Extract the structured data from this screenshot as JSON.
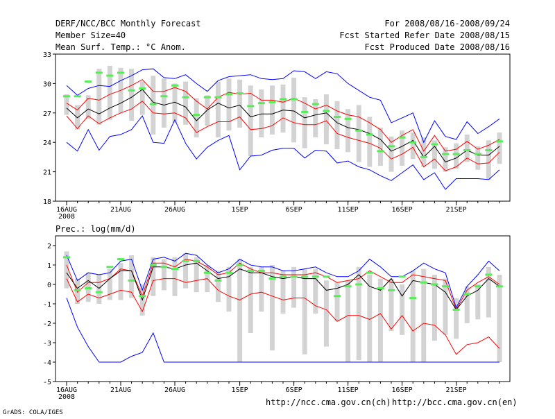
{
  "header": {
    "title": "DERF/NCC/BCC Monthly Forecast",
    "member_size": "Member Size=40",
    "variable": "Mean Surf. Temp.: °C Anom.",
    "period": "For 2008/08/16-2008/09/24",
    "start_ref": "Fcst Started Refer Date 2008/08/15",
    "produced": "Fcst Produced Date 2008/08/16"
  },
  "footer": {
    "credit": "GrADS: COLA/IGES",
    "link_ncc": "http://ncc.cma.gov.cn(ch)",
    "link_bcc": "http://bcc.cma.gov.cn(en)"
  },
  "colors": {
    "max_min": "#0000ff",
    "spread": "#ff0000",
    "mean": "#000000",
    "box": "#d3d3d3",
    "observed": "#55ee55"
  },
  "chart_data": [
    {
      "type": "box-and-line",
      "title": "",
      "ylabel": "Mean Surf. Temp.: °C Anom.",
      "ylim": [
        18,
        33
      ],
      "yticks": [
        18,
        21,
        24,
        27,
        30,
        33
      ],
      "x_days": 40,
      "x_ticks": [
        {
          "day": 0,
          "label": "16AUG",
          "sub": "2008"
        },
        {
          "day": 5,
          "label": "21AUG"
        },
        {
          "day": 10,
          "label": "26AUG"
        },
        {
          "day": 16,
          "label": "1SEP"
        },
        {
          "day": 21,
          "label": "6SEP"
        },
        {
          "day": 26,
          "label": "11SEP"
        },
        {
          "day": 31,
          "label": "16SEP"
        },
        {
          "day": 36,
          "label": "21SEP"
        }
      ],
      "series": [
        {
          "name": "max",
          "color": "#0000ff",
          "values": [
            29.8,
            28.8,
            29.5,
            29.8,
            29.7,
            30.3,
            30.8,
            31.4,
            31.5,
            30.6,
            30.5,
            30.9,
            30.0,
            29.2,
            30.3,
            30.7,
            30.8,
            30.9,
            30.5,
            30.4,
            30.5,
            31.3,
            31.2,
            30.5,
            31.2,
            31.0,
            30.0,
            29.3,
            28.6,
            28.3,
            26.0,
            26.5,
            27.0,
            24.0,
            26.2,
            24.6,
            24.3,
            26.1,
            24.9,
            25.6,
            26.4
          ]
        },
        {
          "name": "upper",
          "color": "#ff0000",
          "values": [
            28.0,
            27.3,
            28.5,
            28.3,
            28.9,
            29.3,
            29.8,
            30.4,
            29.2,
            29.2,
            29.6,
            29.2,
            28.2,
            27.4,
            28.6,
            29.1,
            28.9,
            29.0,
            28.3,
            28.3,
            28.1,
            28.5,
            28.0,
            27.4,
            27.8,
            27.2,
            26.8,
            26.6,
            26.0,
            25.3,
            24.0,
            24.7,
            25.3,
            23.1,
            24.7,
            23.1,
            23.3,
            24.1,
            23.3,
            23.7,
            24.3
          ]
        },
        {
          "name": "mean",
          "color": "#000000",
          "values": [
            27.5,
            26.5,
            27.4,
            26.9,
            27.5,
            28.0,
            28.6,
            29.4,
            28.1,
            27.8,
            28.1,
            27.6,
            26.2,
            27.3,
            28.0,
            27.5,
            27.8,
            26.6,
            26.9,
            26.9,
            27.3,
            27.2,
            26.5,
            26.8,
            27.0,
            26.0,
            25.5,
            25.3,
            24.9,
            24.3,
            23.1,
            23.6,
            24.2,
            22.5,
            23.6,
            22.0,
            22.4,
            23.2,
            22.7,
            22.7,
            23.6
          ]
        },
        {
          "name": "lower",
          "color": "#ff0000",
          "values": [
            26.7,
            25.4,
            26.7,
            25.9,
            26.5,
            27.0,
            27.4,
            28.2,
            27.0,
            26.9,
            27.0,
            26.5,
            25.0,
            25.6,
            26.1,
            26.1,
            26.6,
            25.3,
            25.4,
            25.7,
            26.5,
            26.0,
            25.8,
            25.8,
            26.2,
            24.9,
            24.5,
            24.2,
            23.9,
            23.4,
            22.3,
            22.8,
            23.5,
            21.5,
            22.3,
            21.1,
            21.5,
            22.4,
            21.8,
            21.9,
            23.0
          ]
        },
        {
          "name": "min",
          "color": "#0000ff",
          "values": [
            24.0,
            23.1,
            25.3,
            23.2,
            24.6,
            24.8,
            25.3,
            26.7,
            24.0,
            23.9,
            26.3,
            23.9,
            22.3,
            23.5,
            24.2,
            24.7,
            21.2,
            22.6,
            22.7,
            23.2,
            23.4,
            23.4,
            22.4,
            23.2,
            23.1,
            21.9,
            22.1,
            21.5,
            21.2,
            20.6,
            20.1,
            20.9,
            21.7,
            20.2,
            20.9,
            19.2,
            20.3,
            20.3,
            20.3,
            20.2,
            21.2
          ]
        }
      ],
      "boxes": [
        {
          "low": 26.8,
          "high": 28.9
        },
        {
          "low": 25.3,
          "high": 27.8
        },
        {
          "low": 26.4,
          "high": 28.8
        },
        {
          "low": 25.8,
          "high": 31.5
        },
        {
          "low": 26.3,
          "high": 31.8
        },
        {
          "low": 27.0,
          "high": 31.6
        },
        {
          "low": 26.2,
          "high": 31.5
        },
        {
          "low": 26.8,
          "high": 30.2
        },
        {
          "low": 24.8,
          "high": 30.8
        },
        {
          "low": 25.5,
          "high": 30.5
        },
        {
          "low": 26.0,
          "high": 30.0
        },
        {
          "low": 25.8,
          "high": 30.2
        },
        {
          "low": 24.5,
          "high": 28.5
        },
        {
          "low": 25.7,
          "high": 28.8
        },
        {
          "low": 24.5,
          "high": 30.2
        },
        {
          "low": 25.2,
          "high": 30.5
        },
        {
          "low": 25.5,
          "high": 30.4
        },
        {
          "low": 22.6,
          "high": 29.8
        },
        {
          "low": 24.5,
          "high": 29.4
        },
        {
          "low": 24.8,
          "high": 29.8
        },
        {
          "low": 25.0,
          "high": 29.9
        },
        {
          "low": 24.0,
          "high": 30.6
        },
        {
          "low": 23.4,
          "high": 28.6
        },
        {
          "low": 24.5,
          "high": 28.4
        },
        {
          "low": 23.8,
          "high": 28.9
        },
        {
          "low": 23.3,
          "high": 28.2
        },
        {
          "low": 23.0,
          "high": 27.4
        },
        {
          "low": 22.0,
          "high": 27.8
        },
        {
          "low": 21.5,
          "high": 26.6
        },
        {
          "low": 21.6,
          "high": 25.5
        },
        {
          "low": 21.0,
          "high": 24.6
        },
        {
          "low": 21.6,
          "high": 25.2
        },
        {
          "low": 22.3,
          "high": 25.0
        },
        {
          "low": 21.5,
          "high": 24.5
        },
        {
          "low": 21.3,
          "high": 24.2
        },
        {
          "low": 21.0,
          "high": 23.5
        },
        {
          "low": 21.3,
          "high": 23.9
        },
        {
          "low": 22.0,
          "high": 24.8
        },
        {
          "low": 21.2,
          "high": 23.6
        },
        {
          "low": 20.2,
          "high": 24.2
        },
        {
          "low": 21.8,
          "high": 25.0
        }
      ],
      "observed": [
        28.7,
        28.7,
        30.2,
        31.1,
        30.8,
        31.1,
        29.3,
        29.5,
        27.9,
        28.7,
        29.8,
        28.6,
        26.8,
        28.6,
        28.6,
        28.9,
        29.0,
        27.7,
        28.0,
        28.1,
        28.4,
        28.4,
        27.1,
        27.9,
        27.2,
        26.6,
        26.4,
        25.2,
        24.8,
        23.1,
        23.6,
        24.5,
        24.0,
        22.5,
        23.8,
        22.8,
        22.8,
        23.2,
        22.8,
        23.2,
        24.1
      ]
    },
    {
      "type": "box-and-line",
      "title": "Prec.: log(mm/d)",
      "ylabel": "Prec.: log(mm/d)",
      "ylim": [
        -5,
        2.5
      ],
      "yticks": [
        -5,
        -4,
        -3,
        -2,
        -1,
        0,
        1,
        2
      ],
      "x_days": 40,
      "x_ticks": [
        {
          "day": 0,
          "label": "16AUG",
          "sub": "2008"
        },
        {
          "day": 5,
          "label": "21AUG"
        },
        {
          "day": 10,
          "label": "26AUG"
        },
        {
          "day": 16,
          "label": "1SEP"
        },
        {
          "day": 21,
          "label": "6SEP"
        },
        {
          "day": 26,
          "label": "11SEP"
        },
        {
          "day": 31,
          "label": "16SEP"
        },
        {
          "day": 36,
          "label": "21SEP"
        }
      ],
      "series": [
        {
          "name": "max",
          "color": "#0000ff",
          "values": [
            1.5,
            0.2,
            0.6,
            0.5,
            0.6,
            1.2,
            1.3,
            -0.3,
            1.3,
            1.4,
            1.2,
            1.6,
            1.5,
            1.0,
            0.6,
            0.8,
            1.3,
            1.0,
            0.9,
            0.9,
            0.7,
            0.7,
            0.8,
            0.9,
            0.6,
            0.4,
            0.4,
            0.7,
            1.3,
            0.9,
            0.4,
            0.4,
            0.7,
            1.1,
            0.8,
            0.6,
            -1.2,
            -0.1,
            0.5,
            1.2,
            0.7
          ]
        },
        {
          "name": "upper",
          "color": "#ff0000",
          "values": [
            1.0,
            -0.4,
            0.1,
            0.1,
            0.3,
            0.8,
            0.7,
            -0.6,
            1.1,
            1.1,
            0.9,
            1.3,
            1.2,
            0.9,
            0.5,
            0.6,
            1.1,
            0.8,
            0.6,
            0.6,
            0.5,
            0.5,
            0.5,
            0.6,
            0.4,
            0.1,
            0.2,
            0.3,
            0.7,
            0.4,
            0.1,
            0.1,
            0.5,
            0.4,
            0.3,
            0.2,
            -1.3,
            -0.3,
            0.1,
            0.4,
            0.0
          ]
        },
        {
          "name": "mean",
          "color": "#000000",
          "values": [
            0.6,
            -0.2,
            0.2,
            -0.2,
            0.3,
            0.7,
            0.7,
            -0.8,
            0.9,
            0.9,
            0.8,
            1.0,
            1.1,
            0.7,
            0.3,
            0.4,
            0.8,
            0.6,
            0.6,
            0.4,
            0.3,
            0.4,
            0.3,
            0.3,
            -0.3,
            -0.2,
            0.0,
            0.5,
            -0.1,
            -0.3,
            0.3,
            -0.6,
            0.2,
            0.1,
            0.0,
            -0.4,
            -1.3,
            -0.6,
            -0.3,
            0.3,
            -0.1
          ]
        },
        {
          "name": "lower",
          "color": "#ff0000",
          "values": [
            0.3,
            -0.9,
            -0.5,
            -0.7,
            -0.5,
            -0.3,
            -0.4,
            -1.4,
            0.2,
            0.3,
            0.3,
            0.1,
            0.2,
            0.3,
            -0.3,
            -0.6,
            -0.8,
            -0.5,
            -0.4,
            -0.6,
            -0.8,
            -0.7,
            -0.7,
            -1.1,
            -1.3,
            -1.9,
            -1.6,
            -1.6,
            -1.8,
            -1.5,
            -2.3,
            -1.6,
            -2.4,
            -2.0,
            -2.1,
            -2.6,
            -3.6,
            -3.1,
            -3.0,
            -2.7,
            -3.3
          ]
        },
        {
          "name": "min",
          "color": "#0000ff",
          "values": [
            -0.7,
            -2.2,
            -3.2,
            -4.0,
            -4.0,
            -4.0,
            -3.7,
            -3.5,
            -2.5,
            -4.0,
            -4.0,
            -4.0,
            -4.0,
            -4.0,
            -4.0,
            -4.0,
            -4.0,
            -4.0,
            -4.0,
            -4.0,
            -4.0,
            -4.0,
            -4.0,
            -4.0,
            -4.0,
            -4.0,
            -4.0,
            -4.0,
            -4.0,
            -4.0,
            -4.0,
            -4.0,
            -4.0,
            -4.0,
            -4.0,
            -4.0,
            -4.0,
            -4.0,
            -4.0,
            -4.0,
            -4.0
          ]
        }
      ],
      "boxes": [
        {
          "low": -0.2,
          "high": 1.7
        },
        {
          "low": -1.0,
          "high": 0.3
        },
        {
          "low": -0.9,
          "high": 0.6
        },
        {
          "low": -1.0,
          "high": 0.5
        },
        {
          "low": -0.8,
          "high": 0.8
        },
        {
          "low": -0.8,
          "high": 1.1
        },
        {
          "low": -0.7,
          "high": 1.5
        },
        {
          "low": -1.6,
          "high": 0.0
        },
        {
          "low": -0.6,
          "high": 1.4
        },
        {
          "low": -0.3,
          "high": 1.3
        },
        {
          "low": -0.6,
          "high": 1.4
        },
        {
          "low": -0.2,
          "high": 1.6
        },
        {
          "low": -0.4,
          "high": 1.4
        },
        {
          "low": -0.4,
          "high": 1.0
        },
        {
          "low": -0.9,
          "high": 0.7
        },
        {
          "low": -1.4,
          "high": 0.9
        },
        {
          "low": -4.0,
          "high": 1.3
        },
        {
          "low": -2.5,
          "high": 0.9
        },
        {
          "low": -1.4,
          "high": 0.9
        },
        {
          "low": -3.4,
          "high": 1.0
        },
        {
          "low": -1.5,
          "high": 0.7
        },
        {
          "low": -1.2,
          "high": 0.9
        },
        {
          "low": -3.6,
          "high": 0.8
        },
        {
          "low": -1.5,
          "high": 0.8
        },
        {
          "low": -3.2,
          "high": 0.2
        },
        {
          "low": -1.9,
          "high": 0.1
        },
        {
          "low": -4.0,
          "high": 0.2
        },
        {
          "low": -3.9,
          "high": 0.9
        },
        {
          "low": -4.0,
          "high": 0.5
        },
        {
          "low": -4.0,
          "high": 0.3
        },
        {
          "low": -2.4,
          "high": 0.3
        },
        {
          "low": -2.6,
          "high": 0.0
        },
        {
          "low": -4.0,
          "high": 0.7
        },
        {
          "low": -4.0,
          "high": 0.8
        },
        {
          "low": -2.9,
          "high": 0.5
        },
        {
          "low": -2.6,
          "high": 0.3
        },
        {
          "low": -2.8,
          "high": -0.7
        },
        {
          "low": -2.0,
          "high": -0.1
        },
        {
          "low": -1.8,
          "high": 0.0
        },
        {
          "low": -1.7,
          "high": 0.9
        },
        {
          "low": -4.0,
          "high": 0.5
        }
      ],
      "observed": [
        1.4,
        -0.3,
        -0.2,
        -0.4,
        0.9,
        1.3,
        0.2,
        -0.6,
        1.0,
        0.9,
        0.8,
        1.2,
        1.2,
        0.6,
        0.2,
        0.6,
        1.0,
        0.7,
        0.7,
        0.3,
        0.4,
        0.4,
        0.4,
        0.4,
        0.4,
        -0.6,
        -0.1,
        0.0,
        0.6,
        -0.2,
        -0.3,
        0.4,
        -0.7,
        0.1,
        0.0,
        -0.1,
        -1.3,
        -0.5,
        -0.1,
        0.5,
        -0.1
      ]
    }
  ]
}
